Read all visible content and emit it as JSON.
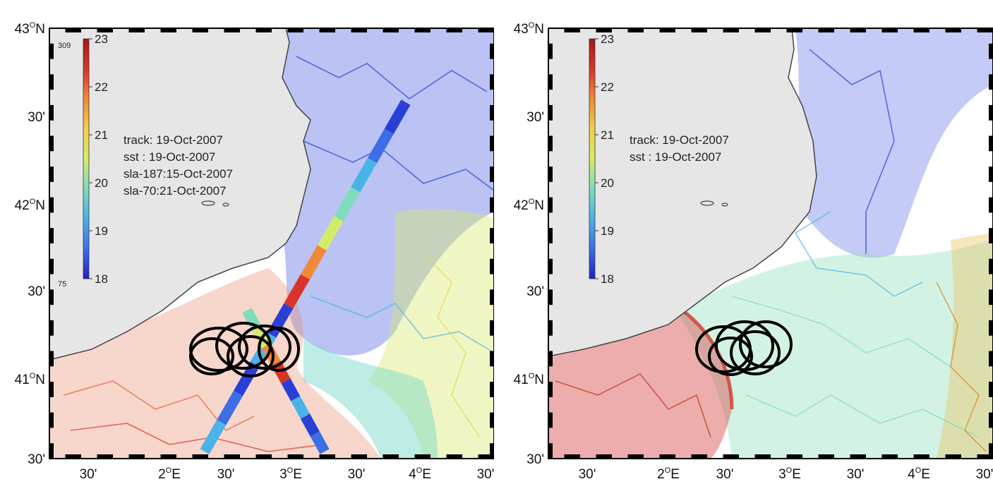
{
  "colors": {
    "land": "#e6e6e6",
    "coast": "#444444",
    "warm": "#d23a2a",
    "cool": "#2a3fd6",
    "mid": "#9be0c0",
    "frame": "#000000"
  },
  "colorbar": {
    "stops": [
      "#2020c8",
      "#3c6ee6",
      "#49b4e8",
      "#7fdcbc",
      "#d6ea6a",
      "#f2d04a",
      "#f08a3a",
      "#d83428",
      "#a81818"
    ],
    "ticks": [
      "23",
      "22",
      "21",
      "20",
      "19",
      "18"
    ],
    "top_small": "309",
    "bottom_small": "75"
  },
  "axes": {
    "y_labels": [
      {
        "deg": "43",
        "sup": "O",
        "suffix": "N"
      },
      {
        "deg": "30'",
        "sup": "",
        "suffix": ""
      },
      {
        "deg": "42",
        "sup": "O",
        "suffix": "N"
      },
      {
        "deg": "30'",
        "sup": "",
        "suffix": ""
      },
      {
        "deg": "41",
        "sup": "O",
        "suffix": "N"
      },
      {
        "deg": "30'",
        "sup": "",
        "suffix": ""
      }
    ],
    "x_labels": [
      {
        "deg": "30'",
        "sup": "",
        "suffix": ""
      },
      {
        "deg": "2",
        "sup": "O",
        "suffix": "E"
      },
      {
        "deg": "30'",
        "sup": "",
        "suffix": ""
      },
      {
        "deg": "3",
        "sup": "O",
        "suffix": "E"
      },
      {
        "deg": "30'",
        "sup": "",
        "suffix": ""
      },
      {
        "deg": "4",
        "sup": "O",
        "suffix": "E"
      },
      {
        "deg": "30'",
        "sup": "",
        "suffix": ""
      }
    ]
  },
  "panels": {
    "left": {
      "annotations": [
        "track: 19-Oct-2007",
        "sst   : 19-Oct-2007",
        "sla-187:15-Oct-2007",
        "sla-70:21-Oct-2007"
      ],
      "show_small_ticks": true,
      "show_tracks": true
    },
    "right": {
      "annotations": [
        "track: 19-Oct-2007",
        "sst   : 19-Oct-2007"
      ],
      "show_small_ticks": false,
      "show_tracks": false
    }
  }
}
